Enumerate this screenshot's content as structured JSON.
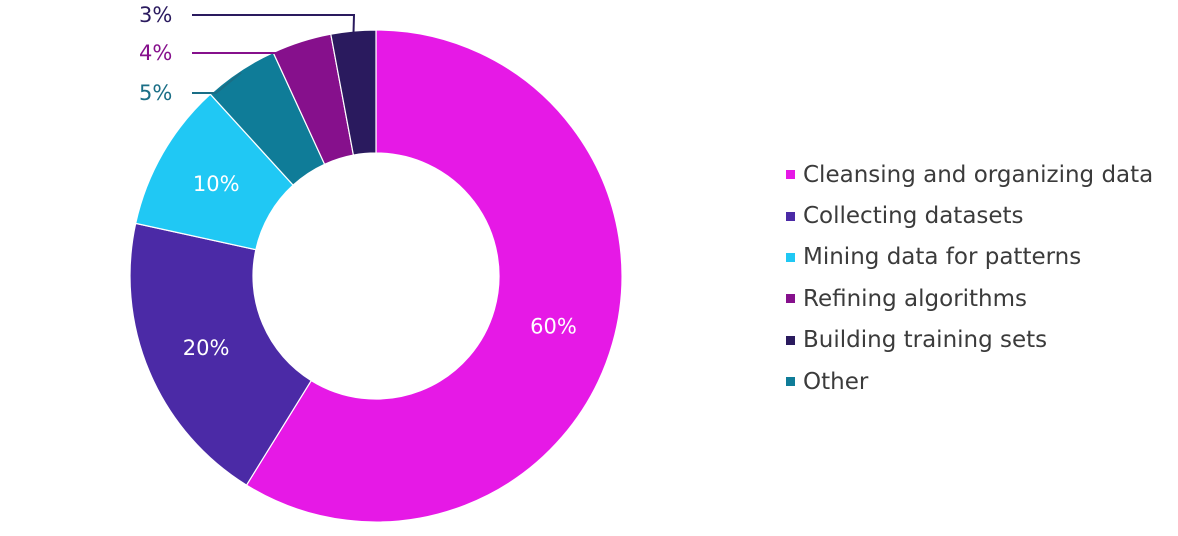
{
  "chart_data": {
    "type": "pie",
    "donut": true,
    "title": "",
    "start_angle_deg": 0,
    "direction": "clockwise",
    "slices": [
      {
        "label": "Cleansing and organizing data",
        "value": 60,
        "display": "60%",
        "color": "#e619e6",
        "label_color": "#ffffff",
        "label_position": "inside"
      },
      {
        "label": "Collecting datasets",
        "value": 20,
        "display": "20%",
        "color": "#4b2aa6",
        "label_color": "#ffffff",
        "label_position": "inside"
      },
      {
        "label": "Mining data for patterns",
        "value": 10,
        "display": "10%",
        "color": "#20c8f4",
        "label_color": "#ffffff",
        "label_position": "inside"
      },
      {
        "label": "Other",
        "value": 5,
        "display": "5%",
        "color": "#0f7c98",
        "label_color": "#1a6e86",
        "label_position": "outside"
      },
      {
        "label": "Refining algorithms",
        "value": 4,
        "display": "4%",
        "color": "#86108c",
        "label_color": "#86108c",
        "label_position": "outside"
      },
      {
        "label": "Building training sets",
        "value": 3,
        "display": "3%",
        "color": "#2a1a5e",
        "label_color": "#2a1a5e",
        "label_position": "outside"
      }
    ],
    "legend": {
      "placement": "right",
      "items": [
        {
          "label": "Cleansing and organizing data",
          "color": "#e619e6"
        },
        {
          "label": "Collecting datasets",
          "color": "#4b2aa6"
        },
        {
          "label": "Mining data for patterns",
          "color": "#20c8f4"
        },
        {
          "label": "Refining algorithms",
          "color": "#86108c"
        },
        {
          "label": "Building training sets",
          "color": "#2a1a5e"
        },
        {
          "label": "Other",
          "color": "#0f7c98"
        }
      ]
    }
  }
}
